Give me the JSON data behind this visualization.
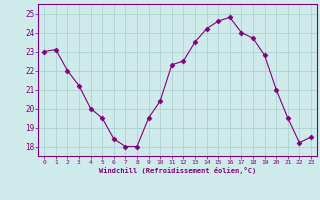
{
  "x": [
    0,
    1,
    2,
    3,
    4,
    5,
    6,
    7,
    8,
    9,
    10,
    11,
    12,
    13,
    14,
    15,
    16,
    17,
    18,
    19,
    20,
    21,
    22,
    23
  ],
  "y": [
    23.0,
    23.1,
    22.0,
    21.2,
    20.0,
    19.5,
    18.4,
    18.0,
    18.0,
    19.5,
    20.4,
    22.3,
    22.5,
    23.5,
    24.2,
    24.6,
    24.8,
    24.0,
    23.7,
    22.8,
    21.0,
    19.5,
    18.2,
    18.5
  ],
  "line_color": "#800080",
  "marker": "D",
  "marker_size": 2.5,
  "bg_color": "#ceeaea",
  "grid_color": "#aacccc",
  "xlabel": "Windchill (Refroidissement éolien,°C)",
  "xlabel_color": "#800080",
  "tick_color": "#800080",
  "spine_color": "#800080",
  "ylim": [
    17.5,
    25.5
  ],
  "yticks": [
    18,
    19,
    20,
    21,
    22,
    23,
    24,
    25
  ],
  "xtick_labels": [
    "0",
    "1",
    "2",
    "3",
    "4",
    "5",
    "6",
    "7",
    "8",
    "9",
    "10",
    "11",
    "12",
    "13",
    "14",
    "15",
    "16",
    "17",
    "18",
    "19",
    "20",
    "21",
    "22",
    "23"
  ]
}
